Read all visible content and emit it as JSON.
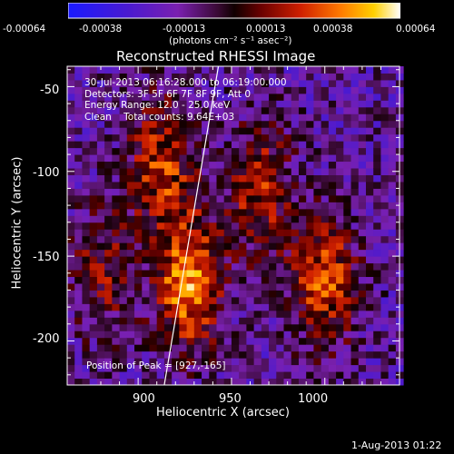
{
  "chart_data": {
    "type": "heatmap",
    "title": "Reconstructed RHESSI Image",
    "xlabel": "Heliocentric X (arcsec)",
    "ylabel": "Heliocentric Y (arcsec)",
    "xlim": [
      862,
      1040
    ],
    "ylim": [
      -226,
      -38
    ],
    "x_ticks": [
      900,
      950,
      1000
    ],
    "y_ticks": [
      -50,
      -100,
      -150,
      -200
    ],
    "colorbar": {
      "min": -0.00064,
      "max": 0.00064,
      "ticks": [
        "-0.00064",
        "-0.00038",
        "-0.00013",
        "0.00013",
        "0.00038",
        "0.00064"
      ],
      "unit_label": "(photons cm⁻² s⁻¹ asec⁻²)",
      "colormap": "rainbow-blue-to-white"
    },
    "info_lines": [
      "30-Jul-2013 06:16:28.000 to 06:19:00.000",
      "Detectors: 3F 5F 6F 7F 8F 9F, Att 0",
      "Energy Range: 12.0 - 25.0 keV",
      "Clean    Total counts: 9.64E+03"
    ],
    "peak_label": "Position of Peak = [927,-165]",
    "peak_position": [
      927,
      -165
    ],
    "limb_line": {
      "from": [
        914,
        -226
      ],
      "to": [
        943,
        -38
      ]
    },
    "sources": [
      {
        "x": 927,
        "y": -165,
        "peak": 0.00064
      },
      {
        "x": 912,
        "y": -95,
        "peak": 0.00045
      },
      {
        "x": 965,
        "y": -110,
        "peak": 0.0004
      },
      {
        "x": 1000,
        "y": -165,
        "peak": 0.0005
      },
      {
        "x": 880,
        "y": -160,
        "peak": 0.0003
      }
    ],
    "grid": false
  },
  "footer": {
    "timestamp": "1-Aug-2013 01:22"
  },
  "colors": {
    "background": "#000000",
    "text": "#ffffff"
  }
}
